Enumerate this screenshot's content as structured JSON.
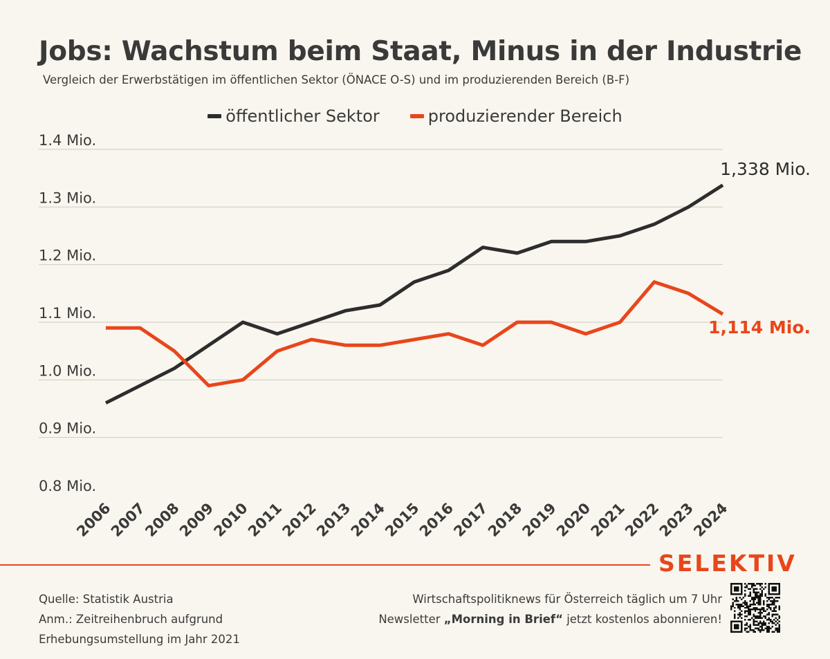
{
  "title": "Jobs: Wachstum beim Staat, Minus in der Industrie",
  "subtitle": "Vergleich der Erwerbstätigen im öffentlichen Sektor (ÖNACE O-S) und im produzierenden Bereich (B-F)",
  "colors": {
    "public": "#2d2d2d",
    "industry": "#e8461b",
    "grid": "#cfcbc2",
    "background": "#f8f6ee"
  },
  "chart_data": {
    "type": "line",
    "categories": [
      "2006",
      "2007",
      "2008",
      "2009",
      "2010",
      "2011",
      "2012",
      "2013",
      "2014",
      "2015",
      "2016",
      "2017",
      "2018",
      "2019",
      "2020",
      "2021",
      "2022",
      "2023",
      "2024"
    ],
    "series": [
      {
        "name": "öffentlicher Sektor",
        "color": "#2d2d2d",
        "values": [
          0.96,
          0.99,
          1.02,
          1.06,
          1.1,
          1.08,
          1.1,
          1.12,
          1.13,
          1.17,
          1.19,
          1.23,
          1.22,
          1.24,
          1.24,
          1.25,
          1.27,
          1.3,
          1.338
        ]
      },
      {
        "name": "produzierender Bereich",
        "color": "#e8461b",
        "values": [
          1.09,
          1.09,
          1.05,
          0.99,
          1.0,
          1.05,
          1.07,
          1.06,
          1.06,
          1.07,
          1.08,
          1.06,
          1.1,
          1.1,
          1.08,
          1.1,
          1.17,
          1.15,
          1.114
        ]
      }
    ],
    "end_labels": [
      "1,338 Mio.",
      "1,114 Mio."
    ],
    "yticks": [
      0.8,
      0.9,
      1.0,
      1.1,
      1.2,
      1.3,
      1.4
    ],
    "ytick_labels": [
      "0.8 Mio.",
      "0.9 Mio.",
      "1.0 Mio.",
      "1.1 Mio.",
      "1.2 Mio.",
      "1.3 Mio.",
      "1.4 Mio."
    ],
    "ylim": [
      0.8,
      1.4
    ],
    "grid": true,
    "legend_position": "top-center",
    "xlabel": "",
    "ylabel": ""
  },
  "brand": "SELEKTIV",
  "footer": {
    "source": "Quelle: Statistik Austria",
    "note_line1": "Anm.: Zeitreihenbruch aufgrund",
    "note_line2": "Erhebungsumstellung im Jahr 2021",
    "promo_line1": "Wirtschaftspolitiknews für Österreich täglich um 7 Uhr",
    "promo_prefix": "Newsletter",
    "promo_bold": "„Morning in Brief“",
    "promo_suffix": "jetzt kostenlos abonnieren!"
  }
}
